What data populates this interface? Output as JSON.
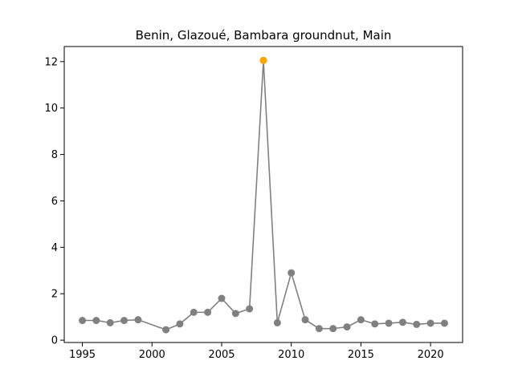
{
  "chart_data": {
    "type": "line",
    "title": "Benin, Glazoué, Bambara groundnut, Main",
    "xlabel": "",
    "ylabel": "",
    "xlim": [
      1993.7,
      2022.3
    ],
    "ylim": [
      -0.1,
      12.65
    ],
    "x_ticks": [
      1995,
      2000,
      2005,
      2010,
      2015,
      2020
    ],
    "y_ticks": [
      0,
      2,
      4,
      6,
      8,
      10,
      12
    ],
    "grid": false,
    "legend": "none",
    "series": [
      {
        "color": "#808080",
        "marker": "circle",
        "points": [
          {
            "x": 1995,
            "y": 0.85
          },
          {
            "x": 1996,
            "y": 0.85
          },
          {
            "x": 1997,
            "y": 0.75
          },
          {
            "x": 1998,
            "y": 0.85
          },
          {
            "x": 1999,
            "y": 0.88
          },
          {
            "x": 2001,
            "y": 0.45
          },
          {
            "x": 2002,
            "y": 0.7
          },
          {
            "x": 2003,
            "y": 1.2
          },
          {
            "x": 2004,
            "y": 1.2
          },
          {
            "x": 2005,
            "y": 1.8
          },
          {
            "x": 2006,
            "y": 1.15
          },
          {
            "x": 2007,
            "y": 1.35
          },
          {
            "x": 2008,
            "y": 12.05
          },
          {
            "x": 2009,
            "y": 0.75
          },
          {
            "x": 2010,
            "y": 2.9
          },
          {
            "x": 2011,
            "y": 0.88
          },
          {
            "x": 2012,
            "y": 0.5
          },
          {
            "x": 2013,
            "y": 0.5
          },
          {
            "x": 2014,
            "y": 0.57
          },
          {
            "x": 2015,
            "y": 0.88
          },
          {
            "x": 2016,
            "y": 0.7
          },
          {
            "x": 2017,
            "y": 0.73
          },
          {
            "x": 2018,
            "y": 0.77
          },
          {
            "x": 2019,
            "y": 0.68
          },
          {
            "x": 2020,
            "y": 0.73
          },
          {
            "x": 2021,
            "y": 0.73
          }
        ]
      }
    ],
    "highlight": {
      "x": 2008,
      "y": 12.05,
      "color": "#ffa500"
    }
  }
}
